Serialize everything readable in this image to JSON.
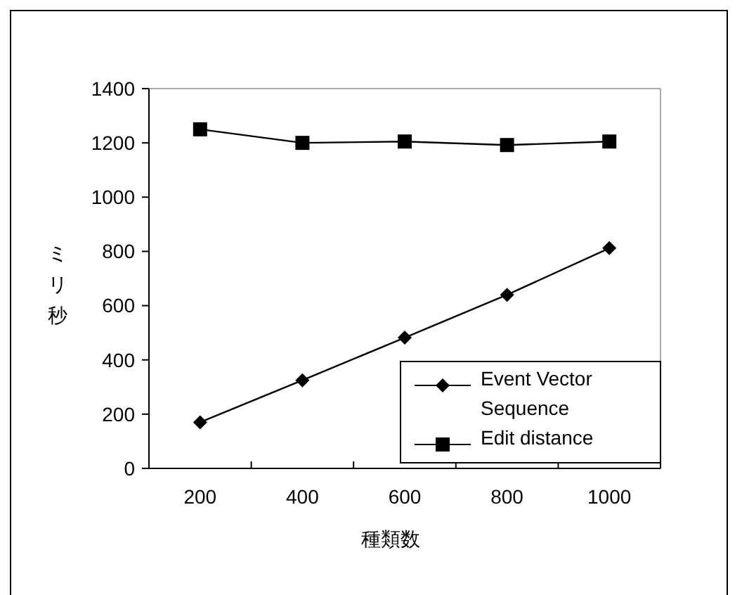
{
  "chart_data": {
    "type": "line",
    "xlabel": "種類数",
    "ylabel": "ミリ秒",
    "categories": [
      "200",
      "400",
      "600",
      "800",
      "1000"
    ],
    "series": [
      {
        "name": "Event Vector Sequence",
        "color": "#000000",
        "marker": "diamond",
        "values": [
          170,
          325,
          482,
          640,
          812
        ]
      },
      {
        "name": "Edit distance",
        "color": "#000000",
        "marker": "square",
        "values": [
          1250,
          1200,
          1205,
          1192,
          1205
        ]
      }
    ],
    "ylim": [
      0,
      1400
    ],
    "yticks": [
      0,
      200,
      400,
      600,
      800,
      1000,
      1200,
      1400
    ],
    "grid": false,
    "legend": "bottom right",
    "line_style": "solid"
  }
}
